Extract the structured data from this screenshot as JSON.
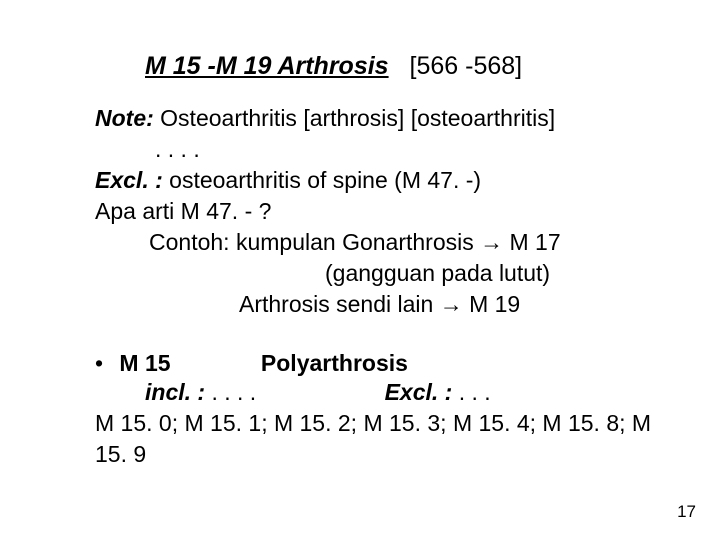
{
  "heading": {
    "main": "M 15 -M 19  Arthrosis",
    "suffix": "[566 -568]"
  },
  "note": {
    "label": "Note:",
    "text": " Osteoarthritis [arthrosis] [osteoarthritis]"
  },
  "dots": ". . . .",
  "excl": {
    "label": "Excl. :",
    "text": " osteoarthritis of spine (M 47. -)"
  },
  "apa": "Apa arti M 47. -  ?",
  "contoh": "Contoh: kumpulan Gonarthrosis → M 17",
  "gangguan": "(gangguan pada lutut)",
  "arthrosis_line": "Arthrosis sendi lain        → M 19",
  "bullet": {
    "m15": "M 15",
    "poly": "Polyarthrosis"
  },
  "incl": {
    "label": "incl. :",
    "dots": " . . . .",
    "excl_label": "Excl. :",
    "excl_dots": " . . ."
  },
  "codes": "M 15. 0; M 15. 1; M 15. 2; M 15. 3; M 15. 4;  M 15. 8; M 15. 9",
  "page_number": "17"
}
